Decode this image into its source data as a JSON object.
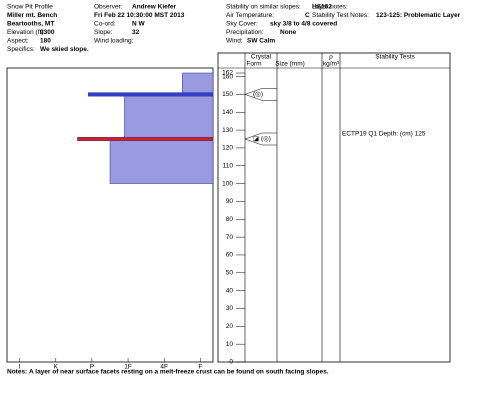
{
  "header": {
    "col1": [
      {
        "text": "Snow Pit Profile"
      },
      {
        "text": "Miller mt. Bench"
      },
      {
        "text": "Beartooths, MT"
      },
      {
        "label": "Elevation (ft):",
        "value": "9300"
      },
      {
        "label": "Aspect:",
        "value": "180"
      },
      {
        "label": "Specifics:",
        "value": "We skied slope."
      }
    ],
    "col2": [
      {
        "label": "Observer:",
        "value": "Andrew Kiefer"
      },
      {
        "text": "Fri Feb 22 10:30:00 MST 2013"
      },
      {
        "label": "Co-ord:",
        "value": "N  W"
      },
      {
        "label": "Slope:",
        "value": "32"
      },
      {
        "label": "Wind loading:",
        "value": ""
      }
    ],
    "col3": [
      {
        "label": "Stability on similar slopes:",
        "value": "HS162"
      },
      {
        "label": "Air Temperature:",
        "value": "C"
      },
      {
        "label": "Sky Cover:",
        "value": "sky 3/8 to 4/8 covered"
      },
      {
        "label": "Precipitation:",
        "value": "None"
      },
      {
        "label": "Wind:",
        "value": "SW Calm"
      }
    ],
    "col4": [
      {
        "text": "Layer notes:"
      },
      {
        "label": "Stability Test Notes:",
        "value": "123-125: Problematic Layer"
      }
    ]
  },
  "chart_data": {
    "type": "snow-profile",
    "columns": {
      "crystal": "Crystal",
      "form": "Form",
      "size": "Size (mm)",
      "rho": "ρ",
      "density_unit": "kg/m³",
      "stability": "Stability Tests"
    },
    "ylim": [
      0,
      162
    ],
    "yticks": [
      0,
      10,
      20,
      30,
      40,
      50,
      60,
      70,
      80,
      90,
      100,
      110,
      120,
      130,
      140,
      150,
      160,
      162
    ],
    "xlim": [
      6.35,
      0.65
    ],
    "xticks": [
      {
        "value": 6,
        "label": "I"
      },
      {
        "value": 5,
        "label": "K"
      },
      {
        "value": 4,
        "label": "P"
      },
      {
        "value": 3,
        "label": "1F"
      },
      {
        "value": 2,
        "label": "4F"
      },
      {
        "value": 1,
        "label": "F"
      }
    ],
    "layers": [
      {
        "top": 162,
        "bottom": 150,
        "hardness": 1.5,
        "color": "#9a9ae0"
      },
      {
        "top": 150,
        "bottom": 125,
        "hardness": 3.1,
        "color": "#9a9ae0"
      },
      {
        "top": 125,
        "bottom": 100,
        "hardness": 3.5,
        "color": "#9a9ae0"
      },
      {
        "top": 151,
        "bottom": 149,
        "hardness": 4.1,
        "color": "#3040c8"
      },
      {
        "top": 126,
        "bottom": 124,
        "hardness": 4.4,
        "color": "#d02020"
      }
    ],
    "crystals": [
      {
        "height": 150,
        "form": "(◎)"
      },
      {
        "height": 125,
        "form": "◪ (◎)"
      }
    ],
    "stability_tests": [
      {
        "height": 125,
        "text": "ECTP19 Q1 Depth: (cm) 125"
      }
    ]
  },
  "notes": {
    "label": "Notes:",
    "text": "A layer of near surface facets resting on a melt-freeze crust can be found on south facing slopes."
  }
}
